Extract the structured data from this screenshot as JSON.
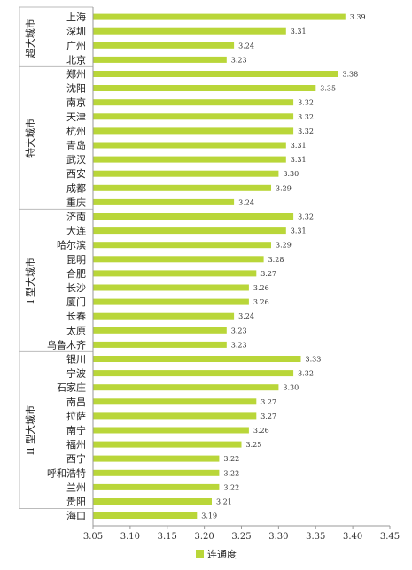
{
  "chart_data": {
    "type": "bar",
    "orientation": "horizontal",
    "legend": {
      "placement": "bottom",
      "entries": [
        "连通度"
      ]
    },
    "colors": {
      "bar": "#b9d639",
      "axis": "#999999"
    },
    "grid": false,
    "xlim": [
      3.05,
      3.45
    ],
    "xticks": [
      "3.05",
      "3.10",
      "3.15",
      "3.20",
      "3.25",
      "3.30",
      "3.35",
      "3.40",
      "3.45"
    ],
    "groups": [
      {
        "label": "超大城市",
        "start": 0,
        "end": 3
      },
      {
        "label": "特大城市",
        "start": 4,
        "end": 13
      },
      {
        "label": "I 型大城市",
        "start": 14,
        "end": 23
      },
      {
        "label": "II 型大城市",
        "start": 24,
        "end": 34
      }
    ],
    "categories": [
      "上海",
      "深圳",
      "广州",
      "北京",
      "郑州",
      "沈阳",
      "南京",
      "天津",
      "杭州",
      "青岛",
      "武汉",
      "西安",
      "成都",
      "重庆",
      "济南",
      "大连",
      "哈尔滨",
      "昆明",
      "合肥",
      "长沙",
      "厦门",
      "长春",
      "太原",
      "乌鲁木齐",
      "银川",
      "宁波",
      "石家庄",
      "南昌",
      "拉萨",
      "南宁",
      "福州",
      "西宁",
      "呼和浩特",
      "兰州",
      "贵阳",
      "海口"
    ],
    "series": [
      {
        "name": "连通度",
        "values": [
          3.39,
          3.31,
          3.24,
          3.23,
          3.38,
          3.35,
          3.32,
          3.32,
          3.32,
          3.31,
          3.31,
          3.3,
          3.29,
          3.24,
          3.32,
          3.31,
          3.29,
          3.28,
          3.27,
          3.26,
          3.26,
          3.24,
          3.23,
          3.23,
          3.33,
          3.32,
          3.3,
          3.27,
          3.27,
          3.26,
          3.25,
          3.22,
          3.22,
          3.22,
          3.21,
          3.19
        ],
        "labels": [
          "3.39",
          "3.31",
          "3.24",
          "3.23",
          "3.38",
          "3.35",
          "3.32",
          "3.32",
          "3.32",
          "3.31",
          "3.31",
          "3.30",
          "3.29",
          "3.24",
          "3.32",
          "3.31",
          "3.29",
          "3.28",
          "3.27",
          "3.26",
          "3.26",
          "3.24",
          "3.23",
          "3.23",
          "3.33",
          "3.32",
          "3.30",
          "3.27",
          "3.27",
          "3.26",
          "3.25",
          "3.22",
          "3.22",
          "3.22",
          "3.21",
          "3.19"
        ]
      }
    ]
  }
}
